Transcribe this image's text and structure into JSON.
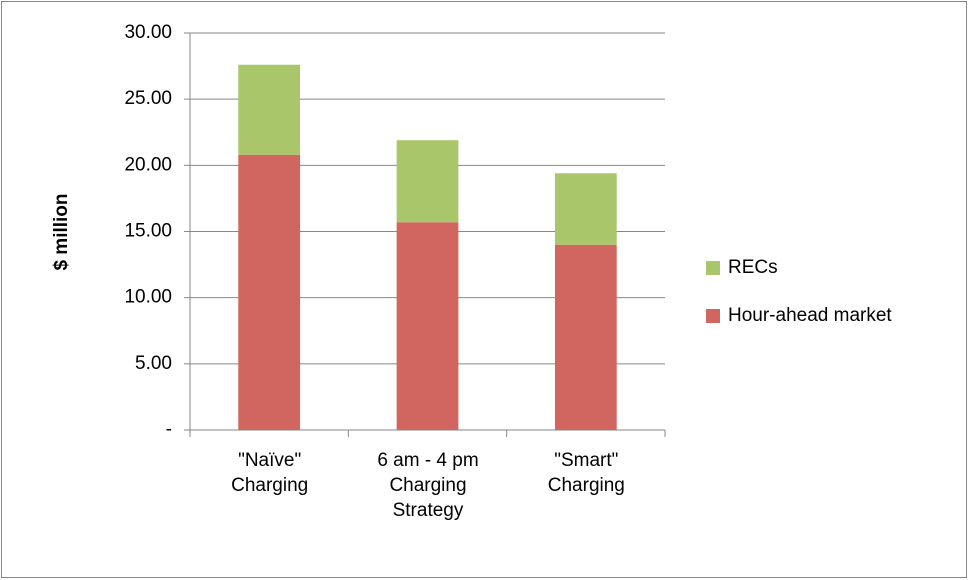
{
  "chart_data": {
    "type": "stacked-bar",
    "y_label": "$ million",
    "categories": [
      "\"Naïve\" Charging",
      "6 am - 4 pm Charging Strategy",
      "\"Smart\" Charging"
    ],
    "series": [
      {
        "name": "Hour-ahead market",
        "color": "#d0665f",
        "values": [
          20.8,
          15.7,
          14.0
        ]
      },
      {
        "name": "RECs",
        "color": "#a9c66a",
        "values": [
          6.8,
          6.2,
          5.4
        ]
      }
    ],
    "ylim": [
      0,
      30
    ],
    "yticks": [
      {
        "value": 0,
        "label": "-"
      },
      {
        "value": 5,
        "label": "5.00"
      },
      {
        "value": 10,
        "label": "10.00"
      },
      {
        "value": 15,
        "label": "15.00"
      },
      {
        "value": 20,
        "label": "20.00"
      },
      {
        "value": 25,
        "label": "25.00"
      },
      {
        "value": 30,
        "label": "30.00"
      }
    ],
    "grid": true,
    "legend": "right"
  }
}
